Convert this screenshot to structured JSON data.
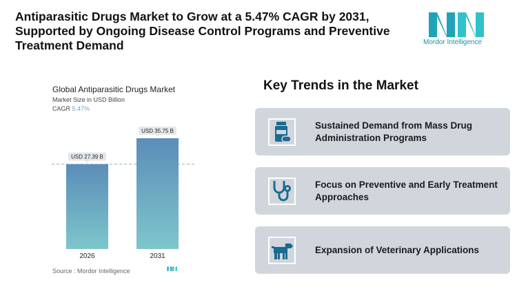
{
  "header": {
    "title": "Antiparasitic Drugs Market to Grow at a 5.47% CAGR by 2031, Supported by Ongoing Disease Control Programs and Preventive Treatment Demand",
    "logo_text": "Mordor Intelligence"
  },
  "chart_data": {
    "type": "bar",
    "title": "Global Antiparasitic Drugs Market",
    "subtitle": "Market Size in USD Billion",
    "cagr_label": "CAGR",
    "cagr_value": "5.47%",
    "categories": [
      "2026",
      "2031"
    ],
    "values": [
      27.39,
      35.75
    ],
    "data_labels": [
      "USD 27.39 B",
      "USD 35.75 B"
    ],
    "ylim": [
      0,
      35.75
    ],
    "grid": false,
    "colors": {
      "bar_top": "#5b8db8",
      "bar_bottom": "#7ec6cc"
    },
    "source": "Source :  Mordor Intelligence"
  },
  "trends": {
    "heading": "Key Trends in the Market",
    "items": [
      {
        "icon": "pill-bottle-icon",
        "label": "Sustained Demand from Mass Drug Administration Programs"
      },
      {
        "icon": "stethoscope-icon",
        "label": "Focus on Preventive and Early Treatment Approaches"
      },
      {
        "icon": "dog-icon",
        "label": "Expansion of Veterinary Applications"
      }
    ]
  },
  "colors": {
    "accent": "#1a6b8f",
    "card": "#d1d5dc"
  }
}
